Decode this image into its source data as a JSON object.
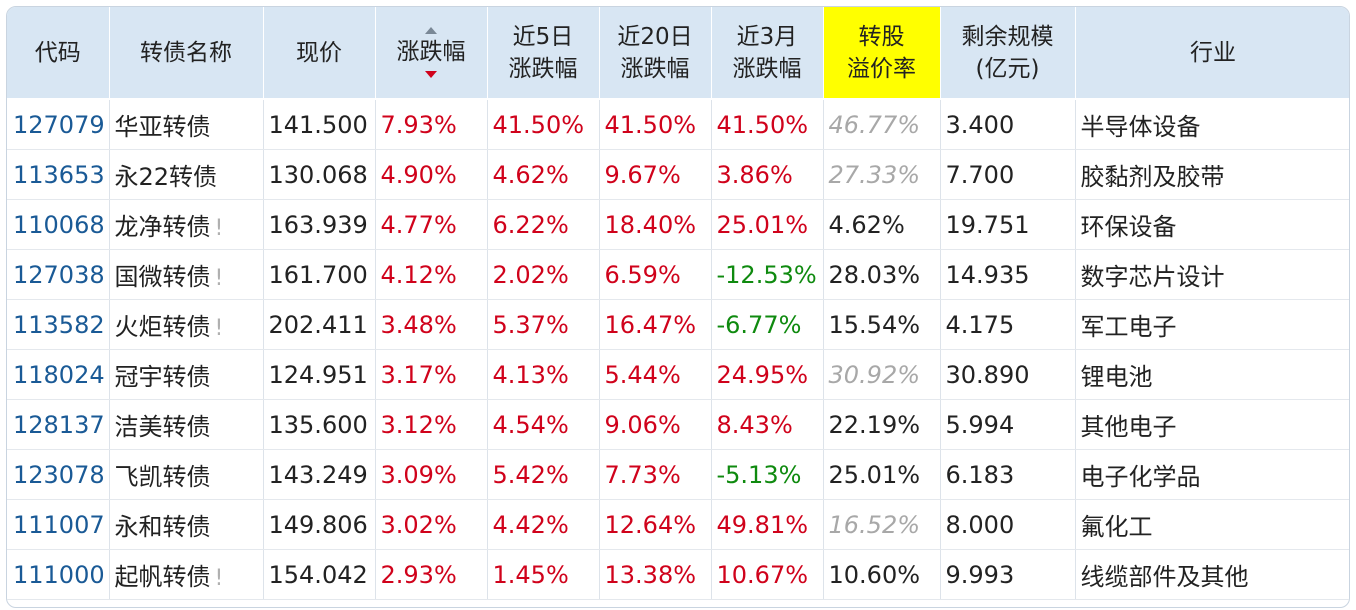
{
  "columns": [
    {
      "key": "code",
      "label": "代码"
    },
    {
      "key": "name",
      "label": "转债名称"
    },
    {
      "key": "price",
      "label": "现价"
    },
    {
      "key": "change",
      "label": "涨跌幅"
    },
    {
      "key": "d5",
      "label": "近5日\n涨跌幅"
    },
    {
      "key": "d20",
      "label": "近20日\n涨跌幅"
    },
    {
      "key": "m3",
      "label": "近3月\n涨跌幅"
    },
    {
      "key": "premium",
      "label": "转股\n溢价率"
    },
    {
      "key": "size",
      "label": "剩余规模\n(亿元)"
    },
    {
      "key": "industry",
      "label": "行业"
    }
  ],
  "sort_column": "change",
  "warn_glyph": "!",
  "colors": {
    "header_bg": "#d8e6f3",
    "highlight": "#ffff00",
    "up": "#d0021b",
    "down": "#0f8a0f",
    "code": "#1a5a96",
    "faded": "#a8a8a8"
  },
  "rows": [
    {
      "code": "127079",
      "name": "华亚转债",
      "warn": false,
      "price": "141.500",
      "change": "7.93%",
      "d5": "41.50%",
      "d20": "41.50%",
      "m3": "41.50%",
      "premium": "46.77%",
      "premium_faded": true,
      "size": "3.400",
      "industry": "半导体设备"
    },
    {
      "code": "113653",
      "name": "永22转债",
      "warn": false,
      "price": "130.068",
      "change": "4.90%",
      "d5": "4.62%",
      "d20": "9.67%",
      "m3": "3.86%",
      "premium": "27.33%",
      "premium_faded": true,
      "size": "7.700",
      "industry": "胶黏剂及胶带"
    },
    {
      "code": "110068",
      "name": "龙净转债",
      "warn": true,
      "price": "163.939",
      "change": "4.77%",
      "d5": "6.22%",
      "d20": "18.40%",
      "m3": "25.01%",
      "premium": "4.62%",
      "premium_faded": false,
      "size": "19.751",
      "industry": "环保设备"
    },
    {
      "code": "127038",
      "name": "国微转债",
      "warn": true,
      "price": "161.700",
      "change": "4.12%",
      "d5": "2.02%",
      "d20": "6.59%",
      "m3": "-12.53%",
      "premium": "28.03%",
      "premium_faded": false,
      "size": "14.935",
      "industry": "数字芯片设计"
    },
    {
      "code": "113582",
      "name": "火炬转债",
      "warn": true,
      "price": "202.411",
      "change": "3.48%",
      "d5": "5.37%",
      "d20": "16.47%",
      "m3": "-6.77%",
      "premium": "15.54%",
      "premium_faded": false,
      "size": "4.175",
      "industry": "军工电子"
    },
    {
      "code": "118024",
      "name": "冠宇转债",
      "warn": false,
      "price": "124.951",
      "change": "3.17%",
      "d5": "4.13%",
      "d20": "5.44%",
      "m3": "24.95%",
      "premium": "30.92%",
      "premium_faded": true,
      "size": "30.890",
      "industry": "锂电池"
    },
    {
      "code": "128137",
      "name": "洁美转债",
      "warn": false,
      "price": "135.600",
      "change": "3.12%",
      "d5": "4.54%",
      "d20": "9.06%",
      "m3": "8.43%",
      "premium": "22.19%",
      "premium_faded": false,
      "size": "5.994",
      "industry": "其他电子"
    },
    {
      "code": "123078",
      "name": "飞凯转债",
      "warn": false,
      "price": "143.249",
      "change": "3.09%",
      "d5": "5.42%",
      "d20": "7.73%",
      "m3": "-5.13%",
      "premium": "25.01%",
      "premium_faded": false,
      "size": "6.183",
      "industry": "电子化学品"
    },
    {
      "code": "111007",
      "name": "永和转债",
      "warn": false,
      "price": "149.806",
      "change": "3.02%",
      "d5": "4.42%",
      "d20": "12.64%",
      "m3": "49.81%",
      "premium": "16.52%",
      "premium_faded": true,
      "size": "8.000",
      "industry": "氟化工"
    },
    {
      "code": "111000",
      "name": "起帆转债",
      "warn": true,
      "price": "154.042",
      "change": "2.93%",
      "d5": "1.45%",
      "d20": "13.38%",
      "m3": "10.67%",
      "premium": "10.60%",
      "premium_faded": false,
      "size": "9.993",
      "industry": "线缆部件及其他"
    }
  ]
}
